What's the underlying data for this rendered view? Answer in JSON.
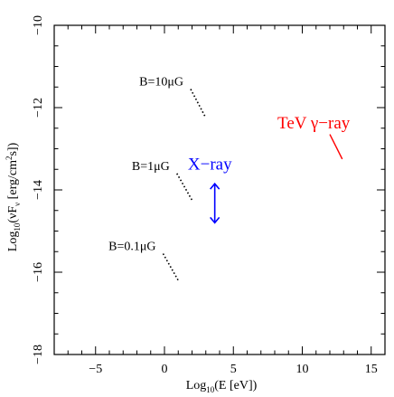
{
  "chart_data": {
    "type": "scatter",
    "xlabel": "Log10(E [eV])",
    "ylabel": "Log10(νFν [erg/cm²s])",
    "xlim": [
      -8,
      16
    ],
    "ylim": [
      -18,
      -10
    ],
    "x_ticks": [
      -5,
      0,
      5,
      10,
      15
    ],
    "y_ticks": [
      -18,
      -16,
      -14,
      -12,
      -10
    ],
    "x_tick_labels": [
      "−5",
      "0",
      "5",
      "10",
      "15"
    ],
    "y_tick_labels": [
      "−18",
      "−16",
      "−14",
      "−12",
      "−10"
    ],
    "grid": false,
    "series": [
      {
        "name": "B=10μG",
        "color": "#000000",
        "style": "dotted",
        "points": [
          [
            1.9,
            -11.55
          ],
          [
            3.0,
            -12.25
          ]
        ]
      },
      {
        "name": "B=1μG",
        "color": "#000000",
        "style": "dotted",
        "points": [
          [
            0.9,
            -13.6
          ],
          [
            2.0,
            -14.25
          ]
        ]
      },
      {
        "name": "B=0.1μG",
        "color": "#000000",
        "style": "dotted",
        "points": [
          [
            -0.1,
            -15.55
          ],
          [
            1.0,
            -16.2
          ]
        ]
      }
    ],
    "annotations": [
      {
        "text": "X−ray",
        "color": "#0000ff",
        "x": 1.7,
        "y": -13.5,
        "arrow": {
          "type": "upper-limit",
          "x": 3.65,
          "y_from": -13.85,
          "y_to": -14.8
        }
      },
      {
        "text": "TeV γ−ray",
        "color": "#ff0000",
        "x": 8.2,
        "y": -12.5,
        "line": [
          [
            12.0,
            -12.65
          ],
          [
            12.9,
            -13.25
          ]
        ]
      }
    ]
  }
}
